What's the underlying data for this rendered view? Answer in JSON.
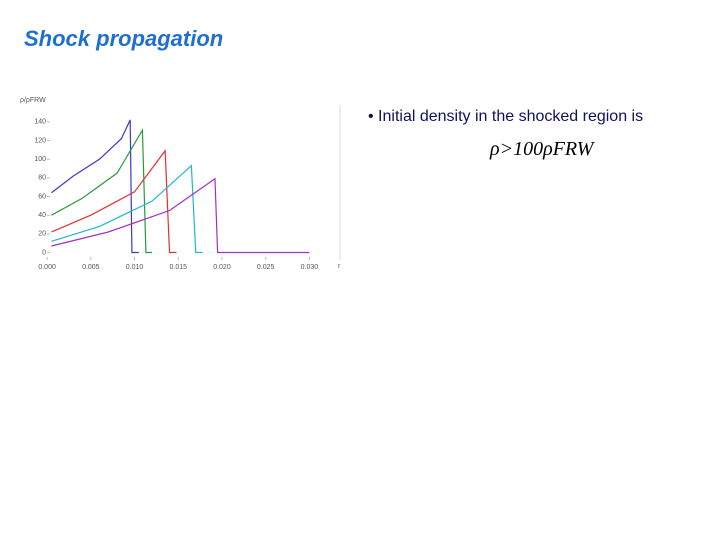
{
  "header": {
    "title": "Shock propagation"
  },
  "chart_data": {
    "type": "line",
    "ylabel": "ρ/ρFRW",
    "xlabel": "r",
    "xlim": [
      -0.0015,
      0.0335
    ],
    "ylim": [
      -8,
      158
    ],
    "xticks": [
      {
        "value": 0,
        "label": "0.000"
      },
      {
        "value": 0.005,
        "label": "0.005"
      },
      {
        "value": 0.01,
        "label": "0.010"
      },
      {
        "value": 0.015,
        "label": "0.015"
      },
      {
        "value": 0.02,
        "label": "0.020"
      },
      {
        "value": 0.025,
        "label": "0.025"
      },
      {
        "value": 0.03,
        "label": "0.030"
      }
    ],
    "yticks": [
      0,
      20,
      40,
      60,
      80,
      100,
      120,
      140
    ],
    "series": [
      {
        "color": "#3a3ac8",
        "x": [
          0.0005,
          0.003,
          0.006,
          0.0085,
          0.0095,
          0.0097,
          0.0105
        ],
        "values": [
          64,
          82,
          100,
          122,
          142,
          0,
          0
        ]
      },
      {
        "color": "#2a9a3a",
        "x": [
          0.0005,
          0.004,
          0.008,
          0.0109,
          0.0113,
          0.012
        ],
        "values": [
          40,
          58,
          85,
          131,
          0,
          0
        ]
      },
      {
        "color": "#e03030",
        "x": [
          0.0005,
          0.005,
          0.01,
          0.0135,
          0.014,
          0.0148
        ],
        "values": [
          22,
          40,
          65,
          109,
          0,
          0
        ]
      },
      {
        "color": "#20b8c8",
        "x": [
          0.0005,
          0.006,
          0.012,
          0.0165,
          0.017,
          0.0178
        ],
        "values": [
          12,
          28,
          55,
          93,
          0,
          0
        ]
      },
      {
        "color": "#a030c0",
        "x": [
          0.0005,
          0.007,
          0.014,
          0.0192,
          0.0195,
          0.03
        ],
        "values": [
          7,
          22,
          45,
          79,
          0,
          0
        ]
      }
    ]
  },
  "bullet": {
    "text": "Initial density in the shocked region is",
    "formula": "ρ>100ρFRW"
  }
}
